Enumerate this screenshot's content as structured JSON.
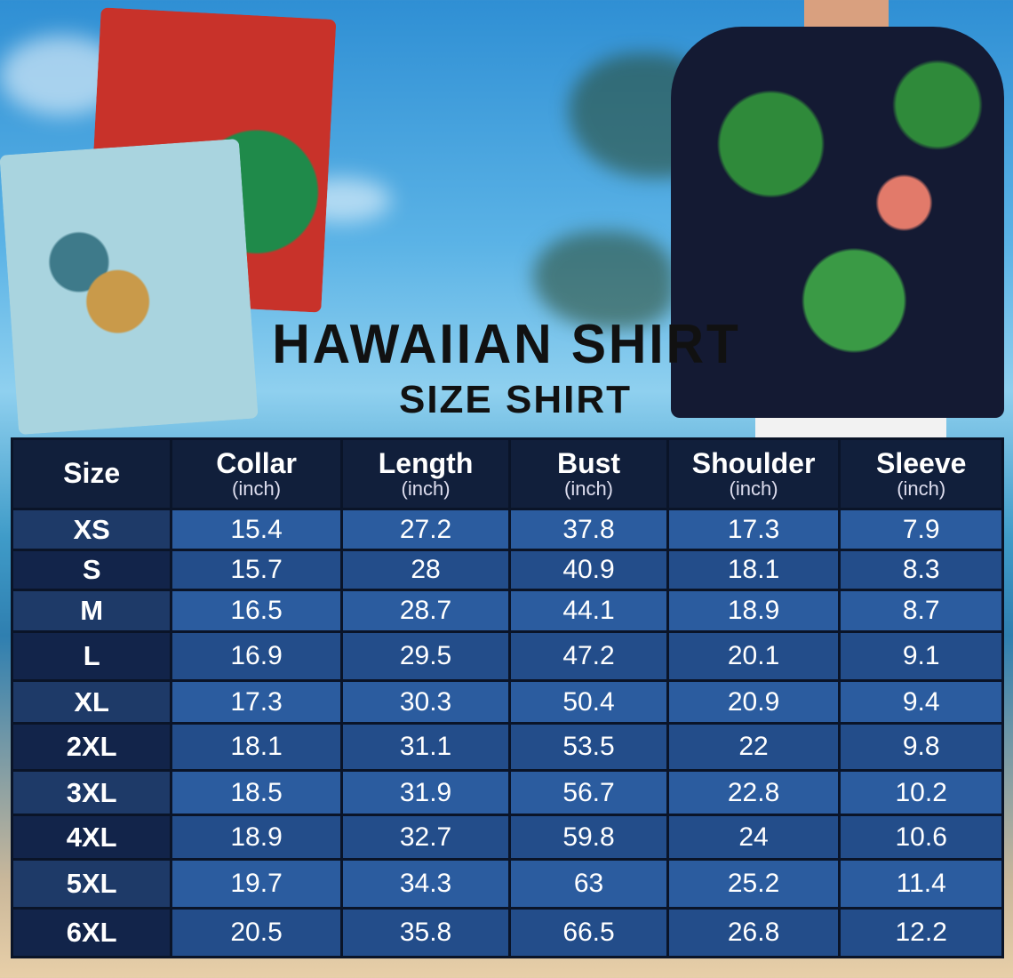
{
  "title": "HAWAIIAN SHIRT",
  "subtitle": "SIZE SHIRT",
  "colors": {
    "header": "#111f3b",
    "cell": "#2b5c9f",
    "cell_alt": "#234d8a",
    "text": "#ffffff"
  },
  "table": {
    "headers": [
      {
        "label": "Size",
        "unit": ""
      },
      {
        "label": "Collar",
        "unit": "(inch)"
      },
      {
        "label": "Length",
        "unit": "(inch)"
      },
      {
        "label": "Bust",
        "unit": "(inch)"
      },
      {
        "label": "Shoulder",
        "unit": "(inch)"
      },
      {
        "label": "Sleeve",
        "unit": "(inch)"
      }
    ],
    "rows": [
      [
        "XS",
        "15.4",
        "27.2",
        "37.8",
        "17.3",
        "7.9"
      ],
      [
        "S",
        "15.7",
        "28",
        "40.9",
        "18.1",
        "8.3"
      ],
      [
        "M",
        "16.5",
        "28.7",
        "44.1",
        "18.9",
        "8.7"
      ],
      [
        "L",
        "16.9",
        "29.5",
        "47.2",
        "20.1",
        "9.1"
      ],
      [
        "XL",
        "17.3",
        "30.3",
        "50.4",
        "20.9",
        "9.4"
      ],
      [
        "2XL",
        "18.1",
        "31.1",
        "53.5",
        "22",
        "9.8"
      ],
      [
        "3XL",
        "18.5",
        "31.9",
        "56.7",
        "22.8",
        "10.2"
      ],
      [
        "4XL",
        "18.9",
        "32.7",
        "59.8",
        "24",
        "10.6"
      ],
      [
        "5XL",
        "19.7",
        "34.3",
        "63",
        "25.2",
        "11.4"
      ],
      [
        "6XL",
        "20.5",
        "35.8",
        "66.5",
        "26.8",
        "12.2"
      ]
    ]
  }
}
